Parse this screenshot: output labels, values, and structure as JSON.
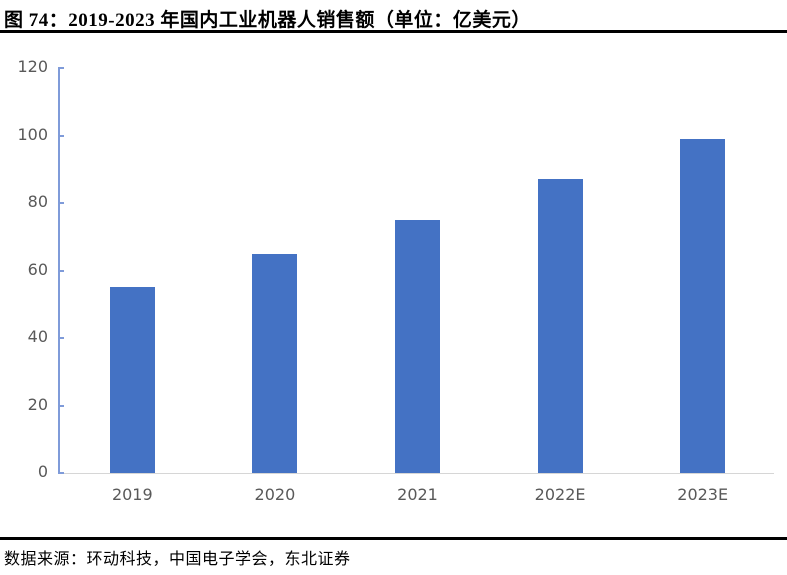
{
  "page": {
    "title": "图 74：2019-2023 年国内工业机器人销售额（单位：亿美元）",
    "source": "数据来源：环动科技，中国电子学会，东北证券"
  },
  "chart_data": {
    "type": "bar",
    "title": "2019-2023 年国内工业机器人销售额",
    "unit": "亿美元",
    "categories": [
      "2019",
      "2020",
      "2021",
      "2022E",
      "2023E"
    ],
    "values": [
      55,
      65,
      75,
      87,
      99
    ],
    "ylim": [
      0,
      120
    ],
    "yticks": [
      0,
      20,
      40,
      60,
      80,
      100,
      120
    ],
    "xlabel": "",
    "ylabel": "",
    "grid": false,
    "legend_position": "none",
    "bar_color": "#4472C4",
    "axis_color": "#7F9BD9",
    "baseline_color": "#D6D6D6",
    "tick_label_color": "#595959"
  }
}
